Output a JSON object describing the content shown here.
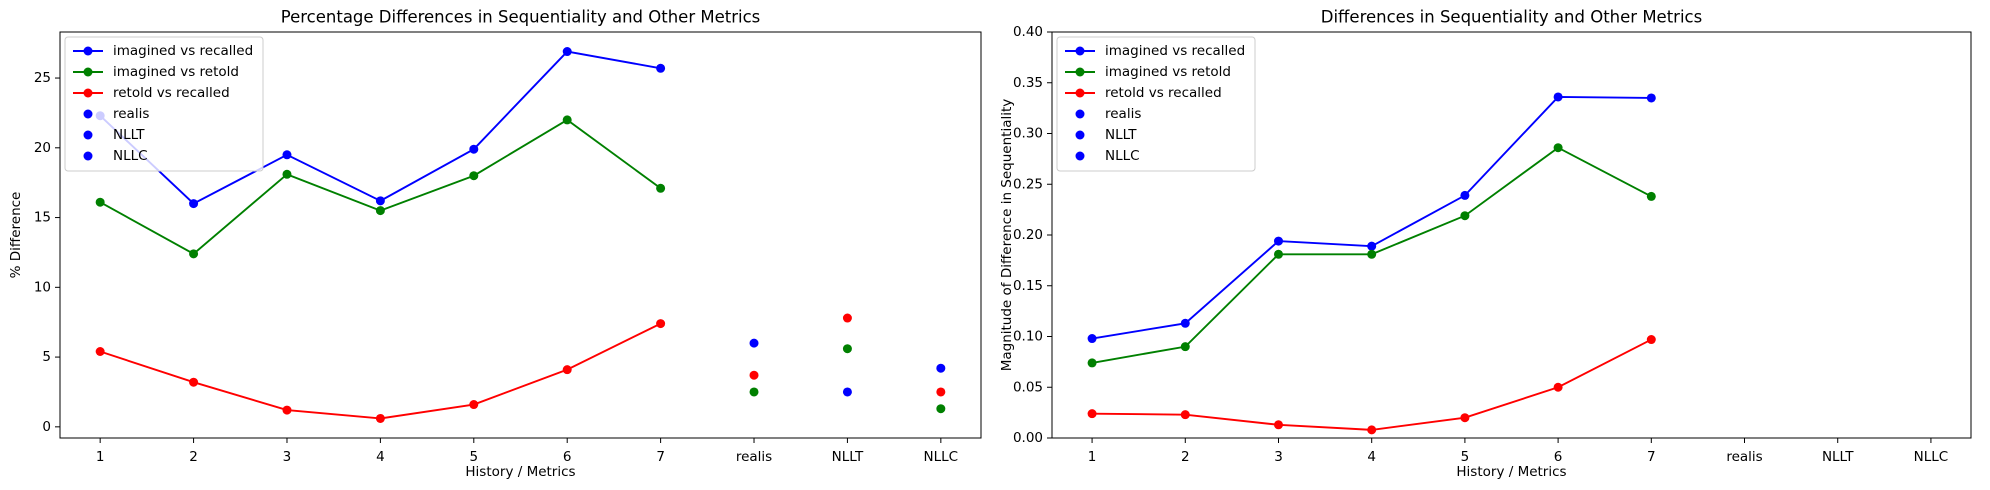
{
  "chart_data": [
    {
      "type": "line",
      "title": "Percentage Differences in Sequentiality and Other Metrics",
      "x_label": "History / Metrics",
      "y_label": "% Difference",
      "categories": [
        "1",
        "2",
        "3",
        "4",
        "5",
        "6",
        "7",
        "realis",
        "NLLT",
        "NLLC"
      ],
      "series": [
        {
          "name": "imagined vs recalled",
          "color": "#0000ff",
          "values": [
            22.3,
            16.0,
            19.5,
            16.2,
            19.9,
            26.9,
            25.7,
            null,
            null,
            null
          ]
        },
        {
          "name": "imagined vs retold",
          "color": "#008000",
          "values": [
            16.1,
            12.4,
            18.1,
            15.5,
            18.0,
            22.0,
            17.1,
            null,
            null,
            null
          ]
        },
        {
          "name": "retold vs recalled",
          "color": "#ff0000",
          "values": [
            5.4,
            3.2,
            1.2,
            0.6,
            1.6,
            4.1,
            7.4,
            null,
            null,
            null
          ]
        }
      ],
      "point_series": [
        {
          "name": "realis",
          "x": "realis",
          "colors": [
            "#0000ff",
            "#008000",
            "#ff0000"
          ],
          "values": [
            6.0,
            2.5,
            3.7
          ]
        },
        {
          "name": "NLLT",
          "x": "NLLT",
          "colors": [
            "#0000ff",
            "#008000",
            "#ff0000"
          ],
          "values": [
            2.5,
            5.6,
            7.8
          ]
        },
        {
          "name": "NLLC",
          "x": "NLLC",
          "colors": [
            "#0000ff",
            "#008000",
            "#ff0000"
          ],
          "values": [
            4.2,
            1.3,
            2.5
          ]
        }
      ],
      "ylim": [
        -0.8,
        28.3
      ],
      "yticks": [
        0,
        5,
        10,
        15,
        20,
        25
      ],
      "legend": "upper left"
    },
    {
      "type": "line",
      "title": "Differences in Sequentiality and Other Metrics",
      "x_label": "History / Metrics",
      "y_label": "Magnitude of Difference in Sequentiality",
      "categories": [
        "1",
        "2",
        "3",
        "4",
        "5",
        "6",
        "7",
        "realis",
        "NLLT",
        "NLLC"
      ],
      "series": [
        {
          "name": "imagined vs recalled",
          "color": "#0000ff",
          "values": [
            0.098,
            0.113,
            0.194,
            0.189,
            0.239,
            0.336,
            0.335,
            null,
            null,
            null
          ]
        },
        {
          "name": "imagined vs retold",
          "color": "#008000",
          "values": [
            0.074,
            0.09,
            0.181,
            0.181,
            0.219,
            0.286,
            0.238,
            null,
            null,
            null
          ]
        },
        {
          "name": "retold vs recalled",
          "color": "#ff0000",
          "values": [
            0.024,
            0.023,
            0.013,
            0.008,
            0.02,
            0.05,
            0.097,
            null,
            null,
            null
          ]
        }
      ],
      "point_series": [
        {
          "name": "realis",
          "x": "realis",
          "colors": [
            "#0000ff",
            "#008000",
            "#ff0000"
          ],
          "values": [
            null,
            null,
            null
          ]
        },
        {
          "name": "NLLT",
          "x": "NLLT",
          "colors": [
            "#0000ff",
            "#008000",
            "#ff0000"
          ],
          "values": [
            null,
            null,
            null
          ]
        },
        {
          "name": "NLLC",
          "x": "NLLC",
          "colors": [
            "#0000ff",
            "#008000",
            "#ff0000"
          ],
          "values": [
            null,
            null,
            null
          ]
        }
      ],
      "ylim": [
        0,
        0.4
      ],
      "yticks": [
        {
          "value": 0,
          "label": "0.00"
        },
        {
          "value": 0.05,
          "label": "0.05"
        },
        {
          "value": 0.1,
          "label": "0.10"
        },
        {
          "value": 0.15,
          "label": "0.15"
        },
        {
          "value": 0.2,
          "label": "0.20"
        },
        {
          "value": 0.25,
          "label": "0.25"
        },
        {
          "value": 0.3,
          "label": "0.30"
        },
        {
          "value": 0.35,
          "label": "0.35"
        },
        {
          "value": 0.4,
          "label": "0.40"
        }
      ],
      "legend": "upper left"
    }
  ]
}
